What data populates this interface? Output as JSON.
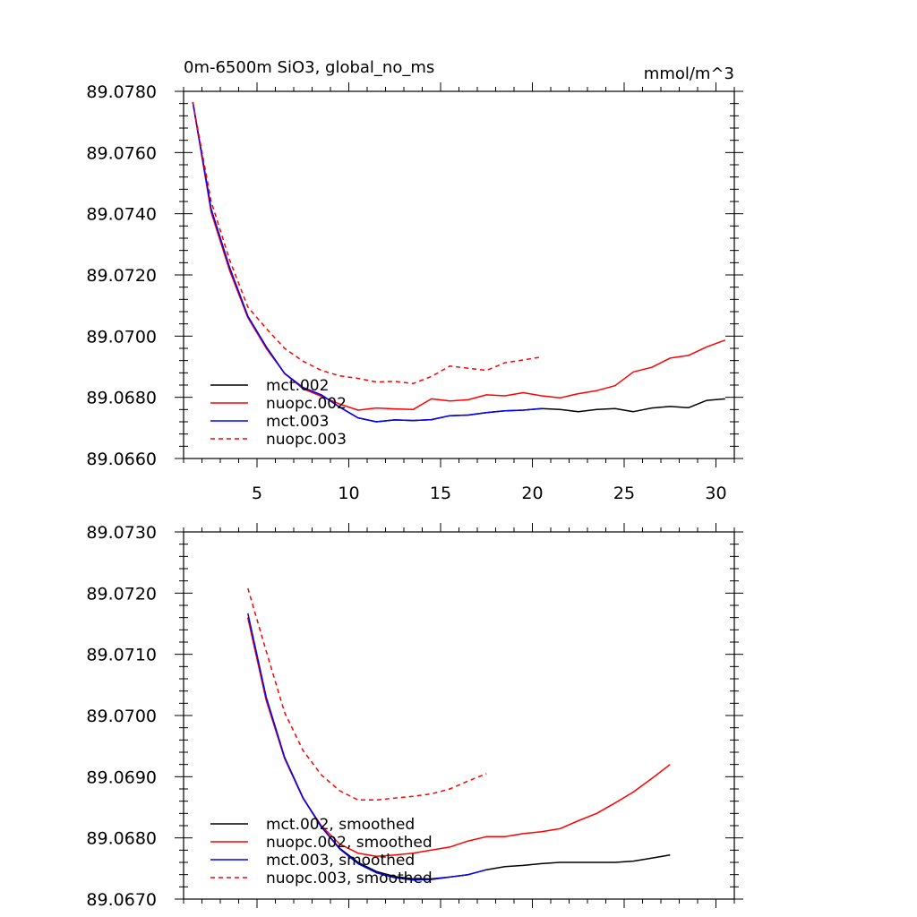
{
  "chart_data": [
    {
      "type": "line",
      "title": "0m-6500m SiO3, global_no_ms",
      "units": "mmol/m^3",
      "xlabel": "",
      "ylabel": "",
      "xlim": [
        1,
        31
      ],
      "ylim": [
        89.066,
        89.078
      ],
      "xticks": [
        5,
        10,
        15,
        20,
        25,
        30
      ],
      "ytick_labels": [
        "89.0780",
        "89.0760",
        "89.0740",
        "89.0720",
        "89.0700",
        "89.0680",
        "89.0660"
      ],
      "ytick_values": [
        89.078,
        89.076,
        89.074,
        89.072,
        89.07,
        89.068,
        89.066
      ],
      "legend_position": "bottom-left",
      "series": [
        {
          "name": "mct.002",
          "color": "#000000",
          "dash": "solid",
          "x": [
            1.5,
            2.5,
            3.5,
            4.5,
            5.5,
            6.5,
            7.5,
            8.5,
            9.5,
            10.5,
            11.5,
            12.5,
            13.5,
            14.5,
            15.5,
            16.5,
            17.5,
            18.5,
            19.5,
            20.5,
            21.5,
            22.5,
            23.5,
            24.5,
            25.5,
            26.5,
            27.5,
            28.5,
            29.5,
            30.5
          ],
          "y": [
            89.07765,
            89.07415,
            89.07225,
            89.07065,
            89.06965,
            89.06878,
            89.06832,
            89.06808,
            89.06768,
            89.06733,
            89.0672,
            89.06726,
            89.06724,
            89.06727,
            89.0674,
            89.06742,
            89.0675,
            89.06756,
            89.06758,
            89.06763,
            89.0676,
            89.06753,
            89.0676,
            89.06763,
            89.06753,
            89.06765,
            89.0677,
            89.06766,
            89.0679,
            89.06795
          ]
        },
        {
          "name": "nuopc.002",
          "color": "#ff0000",
          "dash": "solid",
          "x": [
            1.5,
            2.5,
            3.5,
            4.5,
            5.5,
            6.5,
            7.5,
            8.5,
            9.5,
            10.5,
            11.5,
            12.5,
            13.5,
            14.5,
            15.5,
            16.5,
            17.5,
            18.5,
            19.5,
            20.5,
            21.5,
            22.5,
            23.5,
            24.5,
            25.5,
            26.5,
            27.5,
            28.5,
            29.5,
            30.5
          ],
          "y": [
            89.07765,
            89.07405,
            89.07215,
            89.0706,
            89.0696,
            89.06878,
            89.06828,
            89.06803,
            89.06778,
            89.06758,
            89.06765,
            89.06762,
            89.0676,
            89.06795,
            89.06788,
            89.06792,
            89.06808,
            89.06805,
            89.06815,
            89.06805,
            89.06798,
            89.06812,
            89.06822,
            89.06838,
            89.06883,
            89.06898,
            89.06928,
            89.06937,
            89.06965,
            89.06987
          ]
        },
        {
          "name": "mct.003",
          "color": "#0000ff",
          "dash": "solid",
          "x": [
            1.5,
            2.5,
            3.5,
            4.5,
            5.5,
            6.5,
            7.5,
            8.5,
            9.5,
            10.5,
            11.5,
            12.5,
            13.5,
            14.5,
            15.5,
            16.5,
            17.5,
            18.5,
            19.5,
            20.5
          ],
          "y": [
            89.07765,
            89.07415,
            89.07225,
            89.07065,
            89.06965,
            89.06878,
            89.06832,
            89.06808,
            89.06768,
            89.06733,
            89.0672,
            89.06726,
            89.06724,
            89.06727,
            89.0674,
            89.06742,
            89.0675,
            89.06756,
            89.06758,
            89.06763
          ]
        },
        {
          "name": "nuopc.003",
          "color": "#ff0000",
          "dash": "dashed",
          "x": [
            1.5,
            2.5,
            3.5,
            4.5,
            5.5,
            6.5,
            7.5,
            8.5,
            9.5,
            10.5,
            11.5,
            12.5,
            13.5,
            14.5,
            15.5,
            16.5,
            17.5,
            18.5,
            19.5,
            20.5
          ],
          "y": [
            89.07765,
            89.0744,
            89.0725,
            89.07095,
            89.07025,
            89.0696,
            89.06918,
            89.06888,
            89.0687,
            89.06862,
            89.0685,
            89.06852,
            89.06845,
            89.06868,
            89.06902,
            89.06895,
            89.06888,
            89.06913,
            89.06922,
            89.06932
          ]
        }
      ]
    },
    {
      "type": "line",
      "title": "",
      "xlabel": "",
      "ylabel": "",
      "xlim": [
        1,
        31
      ],
      "ylim": [
        89.067,
        89.073
      ],
      "xticks": [
        5,
        10,
        15,
        20,
        25,
        30
      ],
      "ytick_labels": [
        "89.0730",
        "89.0720",
        "89.0710",
        "89.0700",
        "89.0690",
        "89.0680",
        "89.0670"
      ],
      "ytick_values": [
        89.073,
        89.072,
        89.071,
        89.07,
        89.069,
        89.068,
        89.067
      ],
      "legend_position": "bottom-left",
      "series": [
        {
          "name": "mct.002, smoothed",
          "color": "#000000",
          "dash": "solid",
          "x": [
            4.5,
            5.5,
            6.5,
            7.5,
            8.5,
            9.5,
            10.5,
            11.5,
            12.5,
            13.5,
            14.5,
            15.5,
            16.5,
            17.5,
            18.5,
            19.5,
            20.5,
            21.5,
            22.5,
            23.5,
            24.5,
            25.5,
            26.5,
            27.5
          ],
          "y": [
            89.0716,
            89.07025,
            89.0693,
            89.06865,
            89.06818,
            89.06783,
            89.0676,
            89.06745,
            89.06737,
            89.06733,
            89.06733,
            89.06736,
            89.0674,
            89.06748,
            89.06753,
            89.06755,
            89.06758,
            89.0676,
            89.0676,
            89.0676,
            89.0676,
            89.06762,
            89.06767,
            89.06772
          ]
        },
        {
          "name": "nuopc.002, smoothed",
          "color": "#ff0000",
          "dash": "solid",
          "x": [
            4.5,
            5.5,
            6.5,
            7.5,
            8.5,
            9.5,
            10.5,
            11.5,
            12.5,
            13.5,
            14.5,
            15.5,
            16.5,
            17.5,
            18.5,
            19.5,
            20.5,
            21.5,
            22.5,
            23.5,
            24.5,
            25.5,
            26.5,
            27.5
          ],
          "y": [
            89.0716,
            89.07025,
            89.0693,
            89.06865,
            89.0682,
            89.0679,
            89.06775,
            89.0677,
            89.06772,
            89.06775,
            89.0678,
            89.06785,
            89.06795,
            89.06802,
            89.06802,
            89.06807,
            89.0681,
            89.06815,
            89.06828,
            89.0684,
            89.06857,
            89.06875,
            89.06897,
            89.0692
          ]
        },
        {
          "name": "mct.003, smoothed",
          "color": "#0000ff",
          "dash": "solid",
          "x": [
            4.5,
            5.5,
            6.5,
            7.5,
            8.5,
            9.5,
            10.5,
            11.5,
            12.5,
            13.5,
            14.5,
            15.5,
            16.5,
            17.5
          ],
          "y": [
            89.07167,
            89.0703,
            89.06932,
            89.06866,
            89.06818,
            89.06782,
            89.06758,
            89.06743,
            89.06735,
            89.06731,
            89.06732,
            89.06736,
            89.0674,
            89.06748
          ]
        },
        {
          "name": "nuopc.003, smoothed",
          "color": "#ff0000",
          "dash": "dashed",
          "x": [
            4.5,
            5.5,
            6.5,
            7.5,
            8.5,
            9.5,
            10.5,
            11.5,
            12.5,
            13.5,
            14.5,
            15.5,
            16.5,
            17.5
          ],
          "y": [
            89.07208,
            89.07105,
            89.07005,
            89.06943,
            89.06903,
            89.06877,
            89.06862,
            89.06862,
            89.06865,
            89.06868,
            89.06872,
            89.0688,
            89.06893,
            89.06905
          ]
        }
      ]
    }
  ]
}
